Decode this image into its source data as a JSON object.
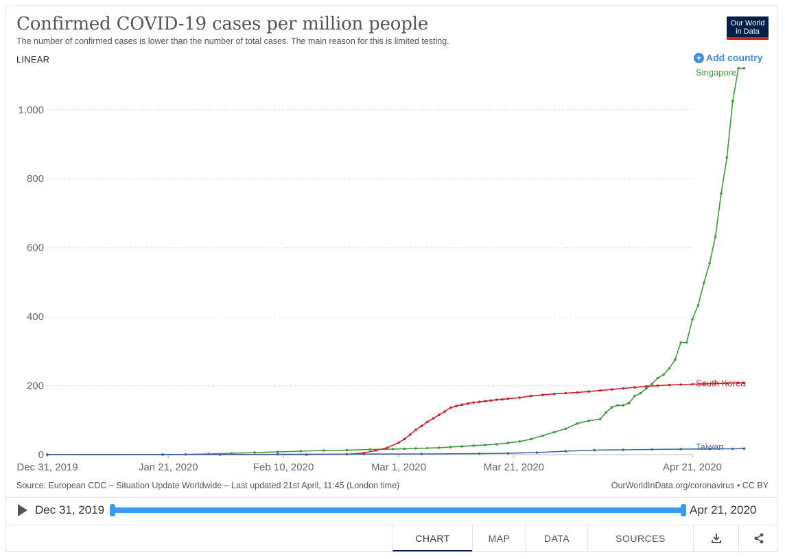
{
  "header": {
    "title": "Confirmed COVID-19 cases per million people",
    "subtitle": "The number of confirmed cases is lower than the number of total cases. The main reason for this is limited testing.",
    "scale_toggle": "LINEAR",
    "logo_line1": "Our World",
    "logo_line2": "in Data",
    "add_country": "Add country"
  },
  "footer": {
    "source": "Source: European CDC – Situation Update Worldwide – Last updated 21st April, 11:45 (London time)",
    "credit": "OurWorldInData.org/coronavirus • CC BY"
  },
  "timeline": {
    "start": "Dec 31, 2019",
    "end": "Apr 21, 2020"
  },
  "tabs": [
    {
      "label": "CHART",
      "active": true
    },
    {
      "label": "MAP"
    },
    {
      "label": "DATA"
    },
    {
      "label": "SOURCES"
    }
  ],
  "icons": {
    "download": "download-icon",
    "share": "share-icon",
    "play": "play-icon",
    "add": "plus-circle-icon"
  },
  "colors": {
    "singapore": "#3c9a3c",
    "south_korea": "#c8232c",
    "taiwan": "#3a64a8",
    "accent": "#3a8ee6",
    "brand": "#002147"
  },
  "chart_data": {
    "type": "line",
    "x_tick_labels": [
      "Dec 31, 2019",
      "Jan 21, 2020",
      "Feb 10, 2020",
      "Mar 1, 2020",
      "Mar 21, 2020",
      "Apr 21, 2020"
    ],
    "x_ticks_days": [
      0,
      21,
      41,
      61,
      81,
      112
    ],
    "y_ticks": [
      0,
      200,
      400,
      600,
      800,
      1000
    ],
    "y_tick_labels": [
      "0",
      "200",
      "400",
      "600",
      "800",
      "1,000"
    ],
    "ylim": [
      0,
      1125
    ],
    "xlim_days": [
      0,
      112
    ],
    "grid": true,
    "series": [
      {
        "name": "Singapore",
        "color": "#3c9a3c",
        "points": [
          [
            0,
            0
          ],
          [
            20,
            0
          ],
          [
            24,
            0.5
          ],
          [
            28,
            2
          ],
          [
            32,
            4
          ],
          [
            36,
            6
          ],
          [
            40,
            8
          ],
          [
            44,
            10
          ],
          [
            48,
            12
          ],
          [
            52,
            13
          ],
          [
            56,
            15
          ],
          [
            60,
            16
          ],
          [
            62,
            17
          ],
          [
            64,
            18
          ],
          [
            66,
            19
          ],
          [
            68,
            20
          ],
          [
            70,
            22
          ],
          [
            72,
            24
          ],
          [
            74,
            26
          ],
          [
            76,
            28
          ],
          [
            78,
            30
          ],
          [
            80,
            34
          ],
          [
            82,
            38
          ],
          [
            84,
            45
          ],
          [
            86,
            55
          ],
          [
            88,
            65
          ],
          [
            90,
            75
          ],
          [
            92,
            90
          ],
          [
            94,
            98
          ],
          [
            96,
            103
          ],
          [
            97,
            122
          ],
          [
            98,
            137
          ],
          [
            99,
            143
          ],
          [
            100,
            143
          ],
          [
            101,
            150
          ],
          [
            102,
            170
          ],
          [
            103,
            178
          ],
          [
            104,
            192
          ],
          [
            105,
            205
          ],
          [
            106,
            222
          ],
          [
            107,
            232
          ],
          [
            108,
            250
          ],
          [
            109,
            275
          ],
          [
            110,
            325
          ],
          [
            111,
            325
          ],
          [
            112,
            392
          ],
          [
            113,
            433
          ],
          [
            114,
            498
          ],
          [
            115,
            555
          ],
          [
            116,
            632
          ],
          [
            117,
            757
          ],
          [
            118,
            862
          ],
          [
            119,
            1025
          ],
          [
            120,
            1120
          ],
          [
            121,
            1120
          ]
        ]
      },
      {
        "name": "South Korea",
        "color": "#c8232c",
        "points": [
          [
            0,
            0
          ],
          [
            30,
            0
          ],
          [
            45,
            0
          ],
          [
            52,
            1
          ],
          [
            55,
            5
          ],
          [
            57,
            12
          ],
          [
            59,
            20
          ],
          [
            61,
            35
          ],
          [
            62,
            45
          ],
          [
            63,
            58
          ],
          [
            64,
            72
          ],
          [
            65,
            83
          ],
          [
            66,
            95
          ],
          [
            67,
            105
          ],
          [
            68,
            115
          ],
          [
            69,
            125
          ],
          [
            70,
            136
          ],
          [
            71,
            141
          ],
          [
            72,
            145
          ],
          [
            73,
            148
          ],
          [
            74,
            151
          ],
          [
            75,
            153
          ],
          [
            76,
            155
          ],
          [
            77,
            157
          ],
          [
            78,
            159
          ],
          [
            79,
            160
          ],
          [
            80,
            162
          ],
          [
            82,
            165
          ],
          [
            84,
            170
          ],
          [
            86,
            173
          ],
          [
            88,
            176
          ],
          [
            90,
            178
          ],
          [
            92,
            180
          ],
          [
            94,
            183
          ],
          [
            96,
            186
          ],
          [
            98,
            189
          ],
          [
            100,
            192
          ],
          [
            102,
            195
          ],
          [
            104,
            198
          ],
          [
            106,
            200
          ],
          [
            108,
            202
          ],
          [
            110,
            203
          ],
          [
            112,
            204
          ],
          [
            114,
            205
          ],
          [
            116,
            206
          ],
          [
            118,
            207
          ],
          [
            120,
            208
          ],
          [
            121,
            208
          ]
        ]
      },
      {
        "name": "Taiwan",
        "color": "#3a64a8",
        "points": [
          [
            0,
            0
          ],
          [
            20,
            0.3
          ],
          [
            40,
            0.7
          ],
          [
            55,
            1.5
          ],
          [
            65,
            2
          ],
          [
            75,
            3
          ],
          [
            80,
            4
          ],
          [
            85,
            6
          ],
          [
            90,
            10
          ],
          [
            95,
            13
          ],
          [
            100,
            14
          ],
          [
            105,
            15
          ],
          [
            110,
            16
          ],
          [
            115,
            16.5
          ],
          [
            119,
            17
          ],
          [
            121,
            17.5
          ]
        ]
      }
    ]
  }
}
